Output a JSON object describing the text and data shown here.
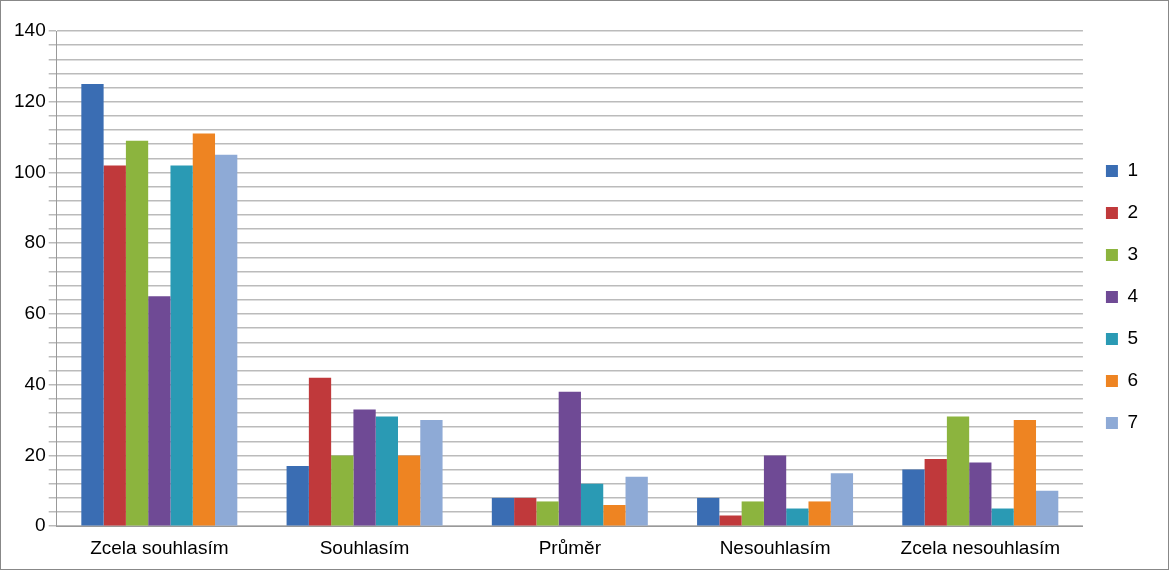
{
  "chart_data": {
    "type": "bar",
    "categories": [
      "Zcela souhlasím",
      "Souhlasím",
      "Průměr",
      "Nesouhlasím",
      "Zcela nesouhlasím"
    ],
    "series": [
      {
        "name": "1",
        "color": "#3a6db3",
        "values": [
          125,
          17,
          8,
          8,
          16
        ]
      },
      {
        "name": "2",
        "color": "#c0393b",
        "values": [
          102,
          42,
          8,
          3,
          19
        ]
      },
      {
        "name": "3",
        "color": "#8cb43e",
        "values": [
          109,
          20,
          7,
          7,
          31
        ]
      },
      {
        "name": "4",
        "color": "#6f4a95",
        "values": [
          65,
          33,
          38,
          20,
          18
        ]
      },
      {
        "name": "5",
        "color": "#2a9ab4",
        "values": [
          102,
          31,
          12,
          5,
          5
        ]
      },
      {
        "name": "6",
        "color": "#ee8422",
        "values": [
          111,
          20,
          6,
          7,
          30
        ]
      },
      {
        "name": "7",
        "color": "#8eaad6",
        "values": [
          105,
          30,
          14,
          15,
          10
        ]
      }
    ],
    "ylim": [
      0,
      140
    ],
    "yticks": [
      0,
      {
        "value": 4,
        "label": null
      },
      {
        "value": 8,
        "label": null
      },
      {
        "value": 12,
        "label": null
      },
      {
        "value": 16,
        "label": null
      },
      20,
      {
        "value": 24,
        "label": null
      },
      {
        "value": 28,
        "label": null
      },
      {
        "value": 32,
        "label": null
      },
      {
        "value": 36,
        "label": null
      },
      40,
      {
        "value": 44,
        "label": null
      },
      {
        "value": 48,
        "label": null
      },
      {
        "value": 52,
        "label": null
      },
      {
        "value": 56,
        "label": null
      },
      60,
      {
        "value": 64,
        "label": null
      },
      {
        "value": 68,
        "label": null
      },
      {
        "value": 72,
        "label": null
      },
      {
        "value": 76,
        "label": null
      },
      80,
      {
        "value": 84,
        "label": null
      },
      {
        "value": 88,
        "label": null
      },
      {
        "value": 92,
        "label": null
      },
      {
        "value": 96,
        "label": null
      },
      100,
      {
        "value": 104,
        "label": null
      },
      {
        "value": 108,
        "label": null
      },
      {
        "value": 112,
        "label": null
      },
      {
        "value": 116,
        "label": null
      },
      120,
      {
        "value": 124,
        "label": null
      },
      {
        "value": 128,
        "label": null
      },
      {
        "value": 132,
        "label": null
      },
      {
        "value": 136,
        "label": null
      },
      140
    ],
    "grid": "y",
    "legend": "right"
  }
}
